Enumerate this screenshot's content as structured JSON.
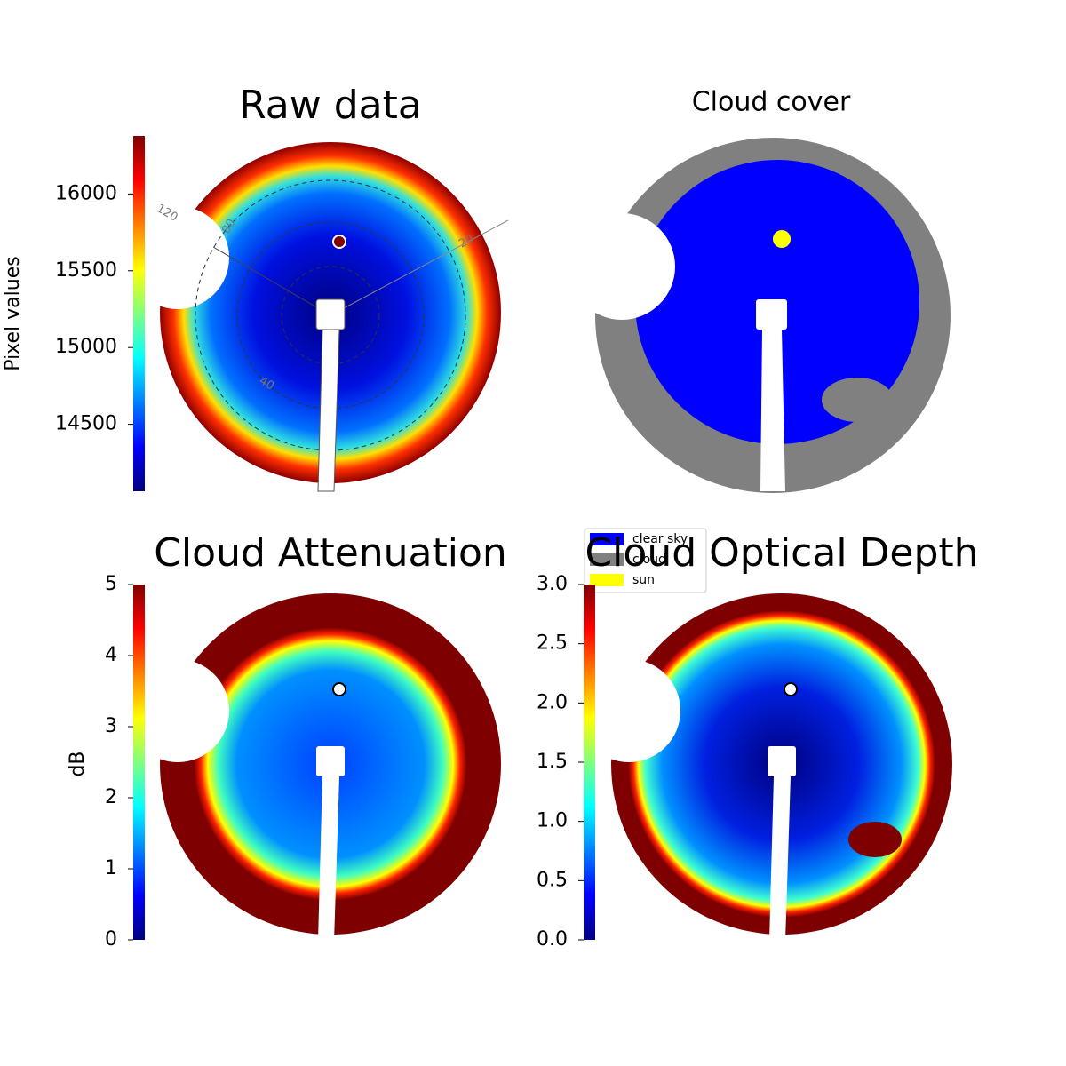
{
  "chart_data": [
    {
      "type": "image",
      "title": "Raw data",
      "ylabel": "Pixel values",
      "ylim": [
        14064,
        16378
      ],
      "yticks": [
        14500,
        15000,
        15500,
        16000
      ],
      "annotations": [
        "120",
        "80",
        "40",
        "20"
      ]
    },
    {
      "type": "image",
      "title": "Cloud cover",
      "series": [
        {
          "name": "clear sky",
          "color": "#0000ff"
        },
        {
          "name": "cloud",
          "color": "#808080"
        },
        {
          "name": "sun",
          "color": "#ffff00"
        }
      ]
    },
    {
      "type": "image",
      "title": "Cloud Attenuation",
      "ylabel": "dB",
      "ylim": [
        0,
        5
      ],
      "yticks": [
        0,
        1,
        2,
        3,
        4,
        5
      ]
    },
    {
      "type": "image",
      "title": "Cloud Optical Depth",
      "ylim": [
        0,
        3
      ],
      "yticks": [
        {
          "value": 0,
          "label": "0.0"
        },
        0.5,
        {
          "value": 1,
          "label": "1.0"
        },
        1.5,
        {
          "value": 2,
          "label": "2.0"
        },
        2.5,
        {
          "value": 3,
          "label": "3.0"
        }
      ]
    }
  ]
}
